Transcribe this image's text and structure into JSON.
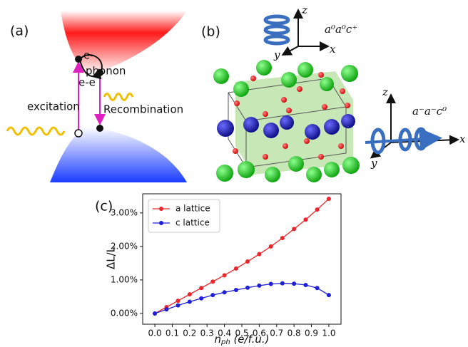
{
  "panel_a": {
    "label": "(a)",
    "electron_top": "e-",
    "phonon": "phonon",
    "electron_pair": "e-e",
    "excitation": "excitation",
    "recombination": "Recombination"
  },
  "panel_b": {
    "label": "(b)",
    "top_axes": {
      "z": "z",
      "y": "y",
      "x": "x",
      "tilt": "a⁰a⁰c⁺"
    },
    "side_axes": {
      "z": "z",
      "y": "y",
      "x": "x",
      "tilt": "a⁻a⁻c⁰"
    }
  },
  "chart_data": {
    "type": "line",
    "panel_label": "(c)",
    "ylabel": "ΔL/L",
    "xlabel": {
      "main": "n",
      "sub": "ph",
      "rest": " (e/f.u.)"
    },
    "x": [
      0,
      0.067,
      0.133,
      0.2,
      0.267,
      0.333,
      0.4,
      0.467,
      0.533,
      0.6,
      0.667,
      0.733,
      0.8,
      0.867,
      0.933,
      1.0
    ],
    "series": [
      {
        "name": "a lattice",
        "color": "#e8262b",
        "values": [
          0,
          0.19,
          0.38,
          0.57,
          0.76,
          0.95,
          1.14,
          1.34,
          1.55,
          1.77,
          2.0,
          2.25,
          2.52,
          2.8,
          3.1,
          3.42
        ]
      },
      {
        "name": "c lattice",
        "color": "#1f1fd6",
        "values": [
          0,
          0.12,
          0.24,
          0.35,
          0.45,
          0.55,
          0.63,
          0.7,
          0.77,
          0.83,
          0.88,
          0.9,
          0.89,
          0.85,
          0.76,
          0.55
        ]
      }
    ],
    "xlim": [
      -0.07,
      1.07
    ],
    "ylim": [
      -0.32,
      3.57
    ],
    "xticks": [
      {
        "value": 0,
        "label": "0.0"
      },
      0.1,
      0.2,
      0.3,
      0.4,
      0.5,
      0.6,
      0.7,
      0.8,
      0.9,
      {
        "value": 1,
        "label": "1.0"
      }
    ],
    "yticks": [
      {
        "value": 0,
        "label": "0.00%"
      },
      {
        "value": 1,
        "label": "1.00%"
      },
      {
        "value": 2,
        "label": "2.00%"
      },
      {
        "value": 3,
        "label": "3.00%"
      }
    ],
    "legend": "upper left"
  }
}
